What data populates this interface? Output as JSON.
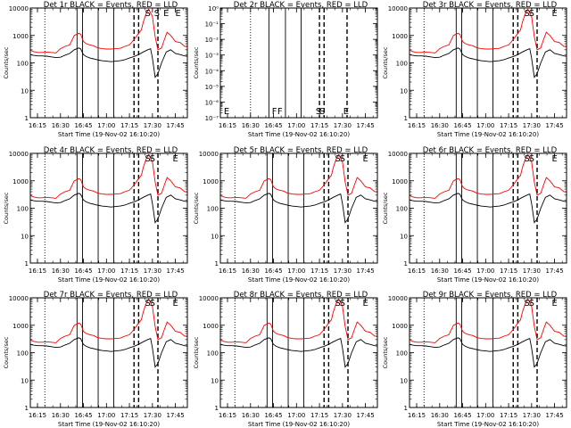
{
  "chart_data": {
    "type": "line",
    "time_ticks": [
      "16:15",
      "16:30",
      "16:45",
      "17:00",
      "17:15",
      "17:30",
      "17:45"
    ],
    "ylabel": "Counts/sec",
    "xlabel": "Start Time (19-Nov-02 16:10:20)",
    "colors": {
      "events": "#000000",
      "lld": "#ff0000"
    },
    "panels": [
      {
        "title": "Det 1r BLACK = Events, RED = LLD",
        "ytick_labels": [
          "1",
          "10",
          "100",
          "1000",
          "10000"
        ],
        "ylim": [
          1,
          10000
        ],
        "has_data": true,
        "markers": [
          {
            "label": "E",
            "t": 17.65
          },
          {
            "label": "S",
            "t": 17.55
          },
          {
            "label": "S",
            "t": 17.45
          },
          {
            "label": "E",
            "t": 17.78
          }
        ]
      },
      {
        "title": "Det 2r BLACK = Events, RED = LLD",
        "ytick_labels": [
          "10⁻⁷",
          "10⁻⁶",
          "10⁻⁵",
          "10⁻⁴",
          "10⁻³",
          "10⁻²",
          "10⁻¹",
          "10⁰"
        ],
        "ylim": [
          1e-07,
          1
        ],
        "has_data": false,
        "markers": [
          {
            "label": "E",
            "t": 16.24
          },
          {
            "label": "F",
            "t": 16.76
          },
          {
            "label": "F",
            "t": 16.82
          },
          {
            "label": "S",
            "t": 17.24
          },
          {
            "label": "S",
            "t": 17.28
          },
          {
            "label": "E",
            "t": 17.54
          }
        ]
      },
      {
        "title": "Det 3r BLACK = Events, RED = LLD",
        "ytick_labels": [
          "1",
          "10",
          "100",
          "1000",
          "10000"
        ],
        "ylim": [
          1,
          10000
        ],
        "has_data": true,
        "markers": [
          {
            "label": "S",
            "t": 17.45
          },
          {
            "label": "S",
            "t": 17.5
          },
          {
            "label": "E",
            "t": 17.75
          }
        ]
      },
      {
        "title": "Det 4r BLACK = Events, RED = LLD",
        "ytick_labels": [
          "1",
          "10",
          "100",
          "1000",
          "10000"
        ],
        "ylim": [
          1,
          10000
        ],
        "has_data": true,
        "markers": [
          {
            "label": "S",
            "t": 17.45
          },
          {
            "label": "S",
            "t": 17.5
          },
          {
            "label": "E",
            "t": 17.75
          }
        ]
      },
      {
        "title": "Det 5r BLACK = Events, RED = LLD",
        "ytick_labels": [
          "1",
          "10",
          "100",
          "1000",
          "10000"
        ],
        "ylim": [
          1,
          10000
        ],
        "has_data": true,
        "markers": [
          {
            "label": "S",
            "t": 17.45
          },
          {
            "label": "S",
            "t": 17.5
          },
          {
            "label": "E",
            "t": 17.75
          }
        ]
      },
      {
        "title": "Det 6r BLACK = Events, RED = LLD",
        "ytick_labels": [
          "1",
          "10",
          "100",
          "1000",
          "10000"
        ],
        "ylim": [
          1,
          10000
        ],
        "has_data": true,
        "markers": [
          {
            "label": "S",
            "t": 17.45
          },
          {
            "label": "S",
            "t": 17.5
          },
          {
            "label": "E",
            "t": 17.75
          }
        ]
      },
      {
        "title": "Det 7r BLACK = Events, RED = LLD",
        "ytick_labels": [
          "1",
          "10",
          "100",
          "1000",
          "10000"
        ],
        "ylim": [
          1,
          10000
        ],
        "has_data": true,
        "markers": [
          {
            "label": "S",
            "t": 17.45
          },
          {
            "label": "S",
            "t": 17.5
          },
          {
            "label": "E",
            "t": 17.75
          }
        ]
      },
      {
        "title": "Det 8r BLACK = Events, RED = LLD",
        "ytick_labels": [
          "1",
          "10",
          "100",
          "1000",
          "10000"
        ],
        "ylim": [
          1,
          10000
        ],
        "has_data": true,
        "markers": [
          {
            "label": "S",
            "t": 17.45
          },
          {
            "label": "S",
            "t": 17.5
          },
          {
            "label": "E",
            "t": 17.75
          }
        ]
      },
      {
        "title": "Det 9r BLACK = Events, RED = LLD",
        "ytick_labels": [
          "1",
          "10",
          "100",
          "1000",
          "10000"
        ],
        "ylim": [
          1,
          10000
        ],
        "has_data": true,
        "markers": [
          {
            "label": "S",
            "t": 17.45
          },
          {
            "label": "S",
            "t": 17.5
          },
          {
            "label": "E",
            "t": 17.75
          }
        ]
      }
    ],
    "series": [
      {
        "name": "LLD",
        "t": [
          16.17,
          16.2,
          16.25,
          16.3,
          16.35,
          16.4,
          16.45,
          16.5,
          16.55,
          16.6,
          16.65,
          16.7,
          16.72,
          16.75,
          16.78,
          16.82,
          16.86,
          16.9,
          16.95,
          17.0,
          17.05,
          17.1,
          17.15,
          17.2,
          17.25,
          17.3,
          17.35,
          17.38,
          17.4,
          17.43,
          17.46,
          17.5,
          17.53,
          17.56,
          17.6,
          17.63,
          17.66,
          17.7,
          17.75,
          17.8,
          17.85,
          17.9
        ],
        "values": [
          300,
          260,
          240,
          240,
          250,
          240,
          230,
          330,
          400,
          450,
          1000,
          1200,
          1100,
          600,
          500,
          450,
          420,
          360,
          330,
          320,
          320,
          330,
          340,
          400,
          450,
          700,
          1200,
          1600,
          3000,
          6000,
          9000,
          5000,
          900,
          300,
          350,
          700,
          1300,
          1000,
          600,
          550,
          400,
          380
        ]
      },
      {
        "name": "Events",
        "t": [
          16.17,
          16.2,
          16.25,
          16.3,
          16.35,
          16.4,
          16.45,
          16.5,
          16.55,
          16.6,
          16.65,
          16.7,
          16.72,
          16.75,
          16.78,
          16.82,
          16.86,
          16.9,
          16.95,
          17.0,
          17.05,
          17.1,
          17.15,
          17.2,
          17.25,
          17.3,
          17.35,
          17.4,
          17.45,
          17.48,
          17.5,
          17.53,
          17.56,
          17.6,
          17.65,
          17.7,
          17.75,
          17.8,
          17.85,
          17.9
        ],
        "values": [
          200,
          190,
          180,
          180,
          175,
          165,
          155,
          160,
          190,
          220,
          300,
          350,
          320,
          200,
          170,
          150,
          140,
          130,
          120,
          115,
          110,
          115,
          120,
          130,
          150,
          170,
          200,
          250,
          300,
          330,
          150,
          30,
          40,
          100,
          250,
          300,
          220,
          200,
          180,
          170
        ]
      }
    ],
    "vlines": [
      {
        "t": 16.33,
        "style": "dotted"
      },
      {
        "t": 16.68,
        "style": "solid"
      },
      {
        "t": 16.74,
        "style": "solid"
      },
      {
        "t": 16.91,
        "style": "solid"
      },
      {
        "t": 17.08,
        "style": "solid"
      },
      {
        "t": 17.3,
        "style": "dashed"
      },
      {
        "t": 17.35,
        "style": "dashed"
      },
      {
        "t": 17.56,
        "style": "dashed"
      }
    ]
  }
}
